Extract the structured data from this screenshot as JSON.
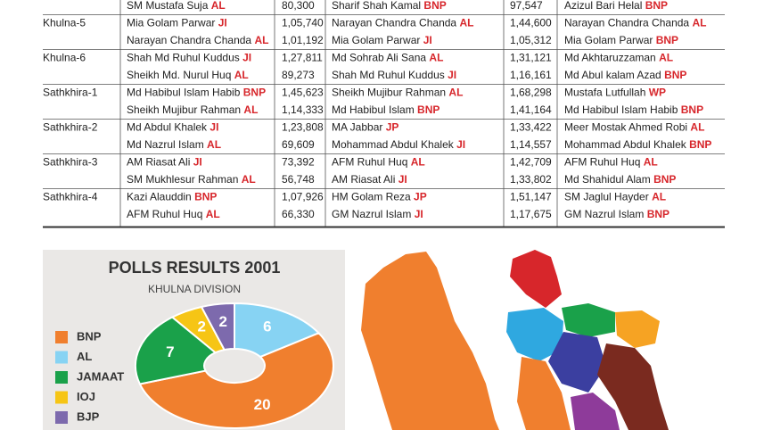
{
  "table": {
    "rows": [
      {
        "lines": [
          [
            "SM Mustafa Suja",
            "AL",
            "80,300",
            "Sharif Shah Kamal",
            "BNP",
            "97,547",
            "Azizul Bari Helal",
            "BNP"
          ]
        ]
      },
      {
        "constituency": "Khulna-5",
        "lines": [
          [
            "Mia Golam Parwar",
            "JI",
            "1,05,740",
            "Narayan Chandra Chanda",
            "AL",
            "1,44,600",
            "Narayan Chandra Chanda",
            "AL"
          ],
          [
            "Narayan Chandra Chanda",
            "AL",
            "1,01,192",
            "Mia Golam Parwar",
            "JI",
            "1,05,312",
            "Mia Golam Parwar",
            "BNP"
          ]
        ]
      },
      {
        "constituency": "Khulna-6",
        "lines": [
          [
            "Shah Md Ruhul Kuddus",
            "JI",
            "1,27,811",
            "Md Sohrab Ali Sana",
            "AL",
            "1,31,121",
            "Md Akhtaruzzaman",
            "AL"
          ],
          [
            "Sheikh Md. Nurul Huq",
            "AL",
            "89,273",
            "Shah Md Ruhul Kuddus",
            "JI",
            "1,16,161",
            "Md Abul kalam Azad",
            "BNP"
          ]
        ]
      },
      {
        "constituency": "Sathkhira-1",
        "lines": [
          [
            "Md Habibul Islam Habib",
            "BNP",
            "1,45,623",
            "Sheikh Mujibur Rahman",
            "AL",
            "1,68,298",
            "Mustafa Lutfullah",
            "WP"
          ],
          [
            "Sheikh Mujibur Rahman",
            "AL",
            "1,14,333",
            "Md Habibul Islam",
            "BNP",
            "1,41,164",
            "Md Habibul Islam Habib",
            "BNP"
          ]
        ]
      },
      {
        "constituency": "Sathkhira-2",
        "lines": [
          [
            "Md Abdul Khalek",
            "JI",
            "1,23,808",
            "MA Jabbar",
            "JP",
            "1,33,422",
            "Meer Mostak Ahmed Robi",
            "AL"
          ],
          [
            "Md Nazrul Islam",
            "AL",
            "69,609",
            "Mohammad Abdul Khalek",
            "JI",
            "1,14,557",
            "Mohammad Abdul Khalek",
            "BNP"
          ]
        ]
      },
      {
        "constituency": "Sathkhira-3",
        "lines": [
          [
            "AM Riasat Ali",
            "JI",
            "73,392",
            "AFM Ruhul Huq",
            "AL",
            "1,42,709",
            "AFM Ruhul Huq",
            "AL"
          ],
          [
            "SM Mukhlesur Rahman",
            "AL",
            "56,748",
            "AM Riasat Ali",
            "JI",
            "1,33,802",
            "Md Shahidul Alam",
            "BNP"
          ]
        ]
      },
      {
        "constituency": "Sathkhira-4",
        "lines": [
          [
            "Kazi Alauddin",
            "BNP",
            "1,07,926",
            "HM Golam Reza",
            "JP",
            "1,51,147",
            "SM Jaglul Hayder",
            "AL"
          ],
          [
            "AFM Ruhul Huq",
            "AL",
            "66,330",
            "GM Nazrul Islam",
            "JI",
            "1,17,675",
            "GM Nazrul Islam",
            "BNP"
          ]
        ]
      }
    ]
  },
  "chart_data": {
    "type": "pie",
    "title": "POLLS RESULTS 2001",
    "subtitle": "KHULNA DIVISION",
    "categories": [
      "BNP",
      "AL",
      "JAMAAT",
      "IOJ",
      "BJP"
    ],
    "values": [
      20,
      6,
      7,
      2,
      2
    ],
    "colors": [
      "#f07f2e",
      "#87d3f3",
      "#1aa14a",
      "#f6c515",
      "#7d6aad"
    ],
    "slice_order": [
      1,
      0,
      2,
      3,
      4
    ]
  }
}
